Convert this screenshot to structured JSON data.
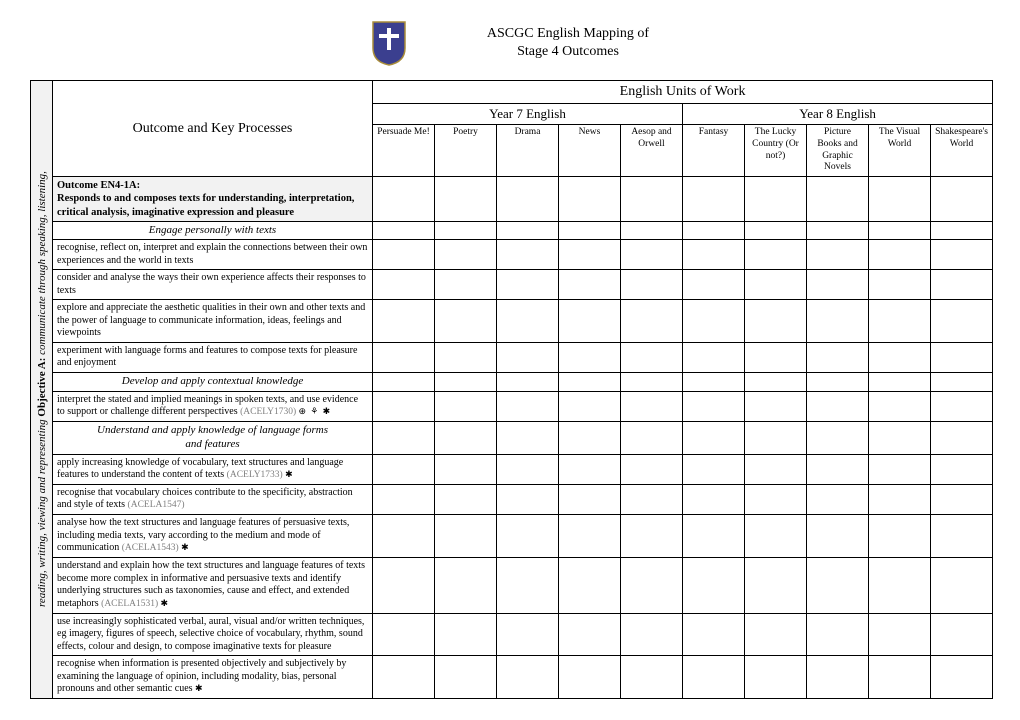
{
  "header": {
    "title_line1": "ASCGC English Mapping of",
    "title_line2": "Stage 4 Outcomes"
  },
  "vertical_label": {
    "lead": "reading, writing, viewing and representing ",
    "objective": "Objective A:",
    "tail": " communicate through speaking, listening,"
  },
  "columns": {
    "outcome_header": "Outcome and Key Processes",
    "units_header": "English Units of Work",
    "year7_header": "Year 7 English",
    "year8_header": "Year 8 English",
    "year7_units": [
      "Persuade Me!",
      "Poetry",
      "Drama",
      "News",
      "Aesop and Orwell"
    ],
    "year8_units": [
      "Fantasy",
      "The Lucky Country (Or not?)",
      "Picture Books and Graphic Novels",
      "The Visual World",
      "Shakespeare's World"
    ]
  },
  "rows": [
    {
      "type": "outcome",
      "text": "Outcome EN4-1A:\nResponds to and composes texts for understanding, interpretation, critical analysis, imaginative expression and pleasure"
    },
    {
      "type": "subheader",
      "text": "Engage personally with texts"
    },
    {
      "type": "process",
      "text": "recognise, reflect on, interpret and explain the connections between their own experiences and the world in texts"
    },
    {
      "type": "process",
      "text": "consider and analyse the ways their own experience affects their responses to texts"
    },
    {
      "type": "process",
      "text": "explore and appreciate the aesthetic qualities in their own and other texts and the power of language to communicate information, ideas, feelings and viewpoints"
    },
    {
      "type": "process",
      "text": "experiment with language forms and features to compose texts for pleasure and enjoyment"
    },
    {
      "type": "subheader",
      "text": "Develop and apply contextual knowledge"
    },
    {
      "type": "process",
      "text": "interpret the stated and implied meanings in spoken texts, and use evidence to support or challenge different perspectives",
      "code": "(ACELY1730)",
      "icons": "⊕ ⚘ ✱"
    },
    {
      "type": "subheader",
      "text": "Understand and apply knowledge of language forms and features"
    },
    {
      "type": "process",
      "text": "apply increasing knowledge of vocabulary, text structures and language features to understand the content of texts",
      "code": "(ACELY1733)",
      "icons": "✱"
    },
    {
      "type": "process",
      "text": "recognise that vocabulary choices contribute to the specificity, abstraction and style of texts",
      "code": "(ACELA1547)"
    },
    {
      "type": "process",
      "text": "analyse how the text structures and language features of persuasive texts, including media texts, vary according to the medium and mode of communication",
      "code": "(ACELA1543)",
      "icons": "✱"
    },
    {
      "type": "process",
      "text": "understand and explain how the text structures and language features of texts become more complex in informative and persuasive texts and identify underlying structures such as taxonomies, cause and effect, and extended metaphors",
      "code": "(ACELA1531)",
      "icons": "✱"
    },
    {
      "type": "process",
      "text": "use increasingly sophisticated verbal, aural, visual and/or written techniques, eg imagery, figures of speech, selective choice of vocabulary, rhythm, sound effects, colour and design, to compose imaginative texts for pleasure"
    },
    {
      "type": "process",
      "text": "recognise when information is presented objectively and subjectively by examining the language of opinion, including modality, bias, personal pronouns and other semantic cues",
      "icons": "✱"
    }
  ],
  "style": {
    "background": "#ffffff",
    "border_color": "#000000",
    "shade_color": "#f2f2f2",
    "code_color": "#7f7f7f",
    "logo_bg": "#3b3f8f",
    "logo_border": "#a88c3a",
    "body_font_size": 11,
    "cell_font_size": 10,
    "header_font_size": 14
  }
}
